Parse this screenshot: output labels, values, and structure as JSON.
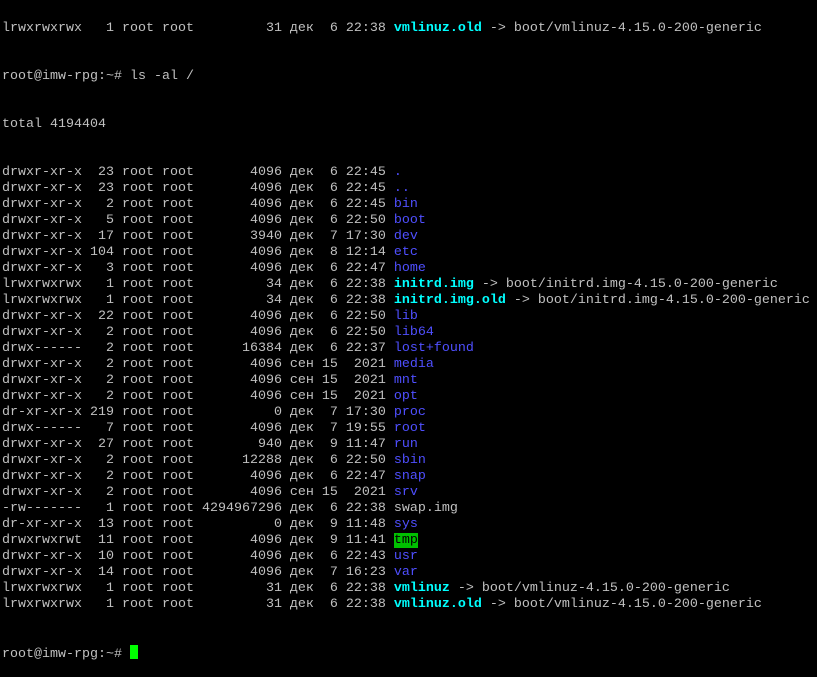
{
  "terminal": {
    "prompt": "root@imw-rpg:~# ",
    "command": "ls -al /",
    "total": "total 4194404",
    "colors": {
      "text": "#c0c0c0",
      "dir": "#4f4fff",
      "link": "#00ffff",
      "sticky_bg": "#00c000",
      "cursor": "#00ff00"
    },
    "previous_line": {
      "perms": "lrwxrwxrwx",
      "links": "1",
      "user": "root",
      "group": "root",
      "size": "31",
      "month": "дек",
      "day": "6",
      "time": "22:38",
      "name": "vmlinuz.old",
      "target": "boot/vmlinuz-4.15.0-200-generic",
      "kind": "link"
    },
    "entries": [
      {
        "perms": "drwxr-xr-x",
        "links": "23",
        "user": "root",
        "group": "root",
        "size": "4096",
        "month": "дек",
        "day": "6",
        "time": "22:45",
        "name": ".",
        "kind": "dir"
      },
      {
        "perms": "drwxr-xr-x",
        "links": "23",
        "user": "root",
        "group": "root",
        "size": "4096",
        "month": "дек",
        "day": "6",
        "time": "22:45",
        "name": "..",
        "kind": "dir"
      },
      {
        "perms": "drwxr-xr-x",
        "links": "2",
        "user": "root",
        "group": "root",
        "size": "4096",
        "month": "дек",
        "day": "6",
        "time": "22:45",
        "name": "bin",
        "kind": "dir"
      },
      {
        "perms": "drwxr-xr-x",
        "links": "5",
        "user": "root",
        "group": "root",
        "size": "4096",
        "month": "дек",
        "day": "6",
        "time": "22:50",
        "name": "boot",
        "kind": "dir"
      },
      {
        "perms": "drwxr-xr-x",
        "links": "17",
        "user": "root",
        "group": "root",
        "size": "3940",
        "month": "дек",
        "day": "7",
        "time": "17:30",
        "name": "dev",
        "kind": "dir"
      },
      {
        "perms": "drwxr-xr-x",
        "links": "104",
        "user": "root",
        "group": "root",
        "size": "4096",
        "month": "дек",
        "day": "8",
        "time": "12:14",
        "name": "etc",
        "kind": "dir"
      },
      {
        "perms": "drwxr-xr-x",
        "links": "3",
        "user": "root",
        "group": "root",
        "size": "4096",
        "month": "дек",
        "day": "6",
        "time": "22:47",
        "name": "home",
        "kind": "dir"
      },
      {
        "perms": "lrwxrwxrwx",
        "links": "1",
        "user": "root",
        "group": "root",
        "size": "34",
        "month": "дек",
        "day": "6",
        "time": "22:38",
        "name": "initrd.img",
        "target": "boot/initrd.img-4.15.0-200-generic",
        "kind": "link"
      },
      {
        "perms": "lrwxrwxrwx",
        "links": "1",
        "user": "root",
        "group": "root",
        "size": "34",
        "month": "дек",
        "day": "6",
        "time": "22:38",
        "name": "initrd.img.old",
        "target": "boot/initrd.img-4.15.0-200-generic",
        "kind": "link"
      },
      {
        "perms": "drwxr-xr-x",
        "links": "22",
        "user": "root",
        "group": "root",
        "size": "4096",
        "month": "дек",
        "day": "6",
        "time": "22:50",
        "name": "lib",
        "kind": "dir"
      },
      {
        "perms": "drwxr-xr-x",
        "links": "2",
        "user": "root",
        "group": "root",
        "size": "4096",
        "month": "дек",
        "day": "6",
        "time": "22:50",
        "name": "lib64",
        "kind": "dir"
      },
      {
        "perms": "drwx------",
        "links": "2",
        "user": "root",
        "group": "root",
        "size": "16384",
        "month": "дек",
        "day": "6",
        "time": "22:37",
        "name": "lost+found",
        "kind": "dir"
      },
      {
        "perms": "drwxr-xr-x",
        "links": "2",
        "user": "root",
        "group": "root",
        "size": "4096",
        "month": "сен",
        "day": "15",
        "time": "2021",
        "name": "media",
        "kind": "dir"
      },
      {
        "perms": "drwxr-xr-x",
        "links": "2",
        "user": "root",
        "group": "root",
        "size": "4096",
        "month": "сен",
        "day": "15",
        "time": "2021",
        "name": "mnt",
        "kind": "dir"
      },
      {
        "perms": "drwxr-xr-x",
        "links": "2",
        "user": "root",
        "group": "root",
        "size": "4096",
        "month": "сен",
        "day": "15",
        "time": "2021",
        "name": "opt",
        "kind": "dir"
      },
      {
        "perms": "dr-xr-xr-x",
        "links": "219",
        "user": "root",
        "group": "root",
        "size": "0",
        "month": "дек",
        "day": "7",
        "time": "17:30",
        "name": "proc",
        "kind": "dir"
      },
      {
        "perms": "drwx------",
        "links": "7",
        "user": "root",
        "group": "root",
        "size": "4096",
        "month": "дек",
        "day": "7",
        "time": "19:55",
        "name": "root",
        "kind": "dir"
      },
      {
        "perms": "drwxr-xr-x",
        "links": "27",
        "user": "root",
        "group": "root",
        "size": "940",
        "month": "дек",
        "day": "9",
        "time": "11:47",
        "name": "run",
        "kind": "dir"
      },
      {
        "perms": "drwxr-xr-x",
        "links": "2",
        "user": "root",
        "group": "root",
        "size": "12288",
        "month": "дек",
        "day": "6",
        "time": "22:50",
        "name": "sbin",
        "kind": "dir"
      },
      {
        "perms": "drwxr-xr-x",
        "links": "2",
        "user": "root",
        "group": "root",
        "size": "4096",
        "month": "дек",
        "day": "6",
        "time": "22:47",
        "name": "snap",
        "kind": "dir"
      },
      {
        "perms": "drwxr-xr-x",
        "links": "2",
        "user": "root",
        "group": "root",
        "size": "4096",
        "month": "сен",
        "day": "15",
        "time": "2021",
        "name": "srv",
        "kind": "dir"
      },
      {
        "perms": "-rw-------",
        "links": "1",
        "user": "root",
        "group": "root",
        "size": "4294967296",
        "month": "дек",
        "day": "6",
        "time": "22:38",
        "name": "swap.img",
        "kind": "file"
      },
      {
        "perms": "dr-xr-xr-x",
        "links": "13",
        "user": "root",
        "group": "root",
        "size": "0",
        "month": "дек",
        "day": "9",
        "time": "11:48",
        "name": "sys",
        "kind": "dir"
      },
      {
        "perms": "drwxrwxrwt",
        "links": "11",
        "user": "root",
        "group": "root",
        "size": "4096",
        "month": "дек",
        "day": "9",
        "time": "11:41",
        "name": "tmp",
        "kind": "sticky"
      },
      {
        "perms": "drwxr-xr-x",
        "links": "10",
        "user": "root",
        "group": "root",
        "size": "4096",
        "month": "дек",
        "day": "6",
        "time": "22:43",
        "name": "usr",
        "kind": "dir"
      },
      {
        "perms": "drwxr-xr-x",
        "links": "14",
        "user": "root",
        "group": "root",
        "size": "4096",
        "month": "дек",
        "day": "7",
        "time": "16:23",
        "name": "var",
        "kind": "dir"
      },
      {
        "perms": "lrwxrwxrwx",
        "links": "1",
        "user": "root",
        "group": "root",
        "size": "31",
        "month": "дек",
        "day": "6",
        "time": "22:38",
        "name": "vmlinuz",
        "target": "boot/vmlinuz-4.15.0-200-generic",
        "kind": "link"
      },
      {
        "perms": "lrwxrwxrwx",
        "links": "1",
        "user": "root",
        "group": "root",
        "size": "31",
        "month": "дек",
        "day": "6",
        "time": "22:38",
        "name": "vmlinuz.old",
        "target": "boot/vmlinuz-4.15.0-200-generic",
        "kind": "link"
      }
    ],
    "arrow": " -> "
  }
}
